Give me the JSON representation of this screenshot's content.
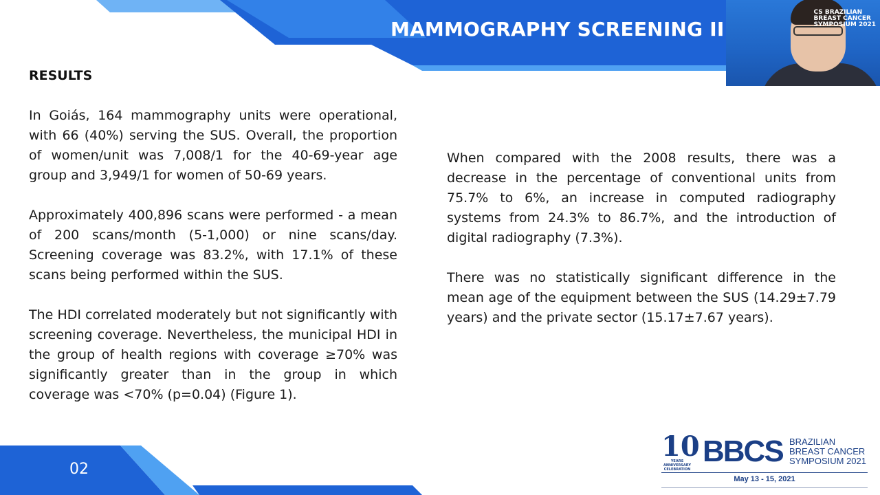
{
  "slide": {
    "title": "MAMMOGRAPHY SCREENING II",
    "section_heading": "RESULTS",
    "page_number": "02",
    "left_paragraphs": [
      "In Goiás, 164 mammography units were operational, with 66 (40%) serving the SUS. Overall, the proportion of women/unit was 7,008/1 for the 40-69-year age group and 3,949/1 for women of 50-69 years.",
      "Approximately 400,896 scans were performed - a mean of 200 scans/month (5-1,000) or nine scans/day. Screening coverage was 83.2%, with 17.1% of these scans being performed within the SUS.",
      "The HDI correlated moderately but not significantly with screening coverage. Nevertheless, the municipal HDI in the group of health regions with coverage ≥70% was significantly greater than in the group in which coverage was <70% (p=0.04) (Figure 1)."
    ],
    "right_paragraphs": [
      "When compared with the 2008 results, there was a decrease in the percentage of conventional units from 75.7% to 6%, an increase in computed radiography systems from 24.3% to 86.7%, and the introduction of digital radiography (7.3%).",
      "There was no statistically significant difference in the mean age of the equipment between the SUS (14.29±7.79 years) and the private sector (15.17±7.67 years)."
    ]
  },
  "logo": {
    "anniversary_number": "10",
    "anniversary_text": "YEARS ANNIVERSARY CELEBRATION",
    "acronym": "BBCS",
    "name_line1": "BRAZILIAN",
    "name_line2": "BREAST CANCER",
    "name_line3": "SYMPOSIUM 2021",
    "dates": "May 13 - 15, 2021"
  },
  "webcam": {
    "overlay_logo_line1": "CS BRAZILIAN",
    "overlay_logo_line2": "BREAST CANCER",
    "overlay_logo_line3": "SYMPOSIUM 2021"
  },
  "colors": {
    "brand_blue": "#1b3f86",
    "band_blue": "#1e63d6",
    "band_light": "#3b8ef0"
  }
}
